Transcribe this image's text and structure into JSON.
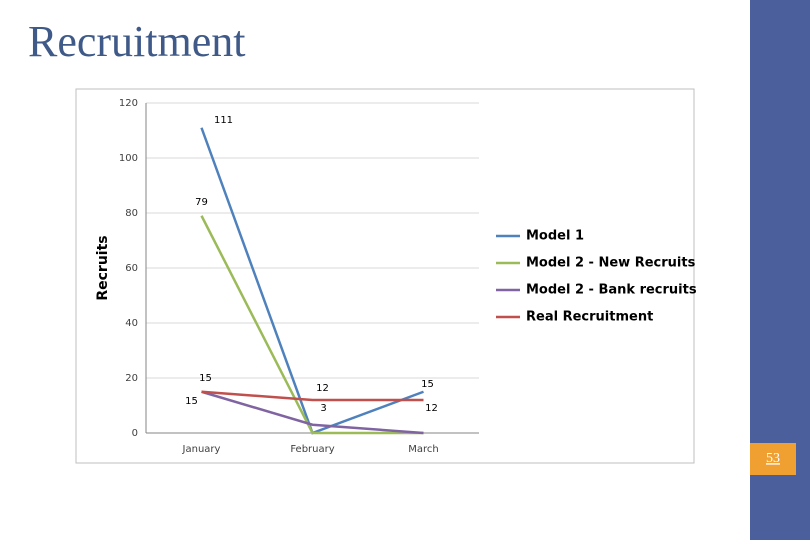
{
  "title": "Recruitment",
  "slide_number": "53",
  "chart_data": {
    "type": "line",
    "y_label": "Recruits",
    "categories": [
      "January",
      "February",
      "March"
    ],
    "ylim": [
      0,
      120
    ],
    "yticks": [
      0,
      20,
      40,
      60,
      80,
      100,
      120
    ],
    "grid": true,
    "legend": "right",
    "series": [
      {
        "name": "Model 1",
        "color": "#4f81bd",
        "values": [
          111,
          0,
          15
        ],
        "value_labels": [
          "111",
          null,
          "15"
        ]
      },
      {
        "name": "Model 2 - New Recruits",
        "color": "#9bbb59",
        "values": [
          79,
          0,
          0
        ],
        "value_labels": [
          "79",
          null,
          null
        ]
      },
      {
        "name": "Model 2 - Bank recruits",
        "color": "#8064a2",
        "values": [
          15,
          3,
          0
        ],
        "value_labels": [
          "15",
          "3",
          null
        ]
      },
      {
        "name": "Real Recruitment",
        "color": "#c0504d",
        "values": [
          15,
          12,
          12
        ],
        "value_labels": [
          "15",
          "12",
          "12"
        ]
      }
    ]
  }
}
